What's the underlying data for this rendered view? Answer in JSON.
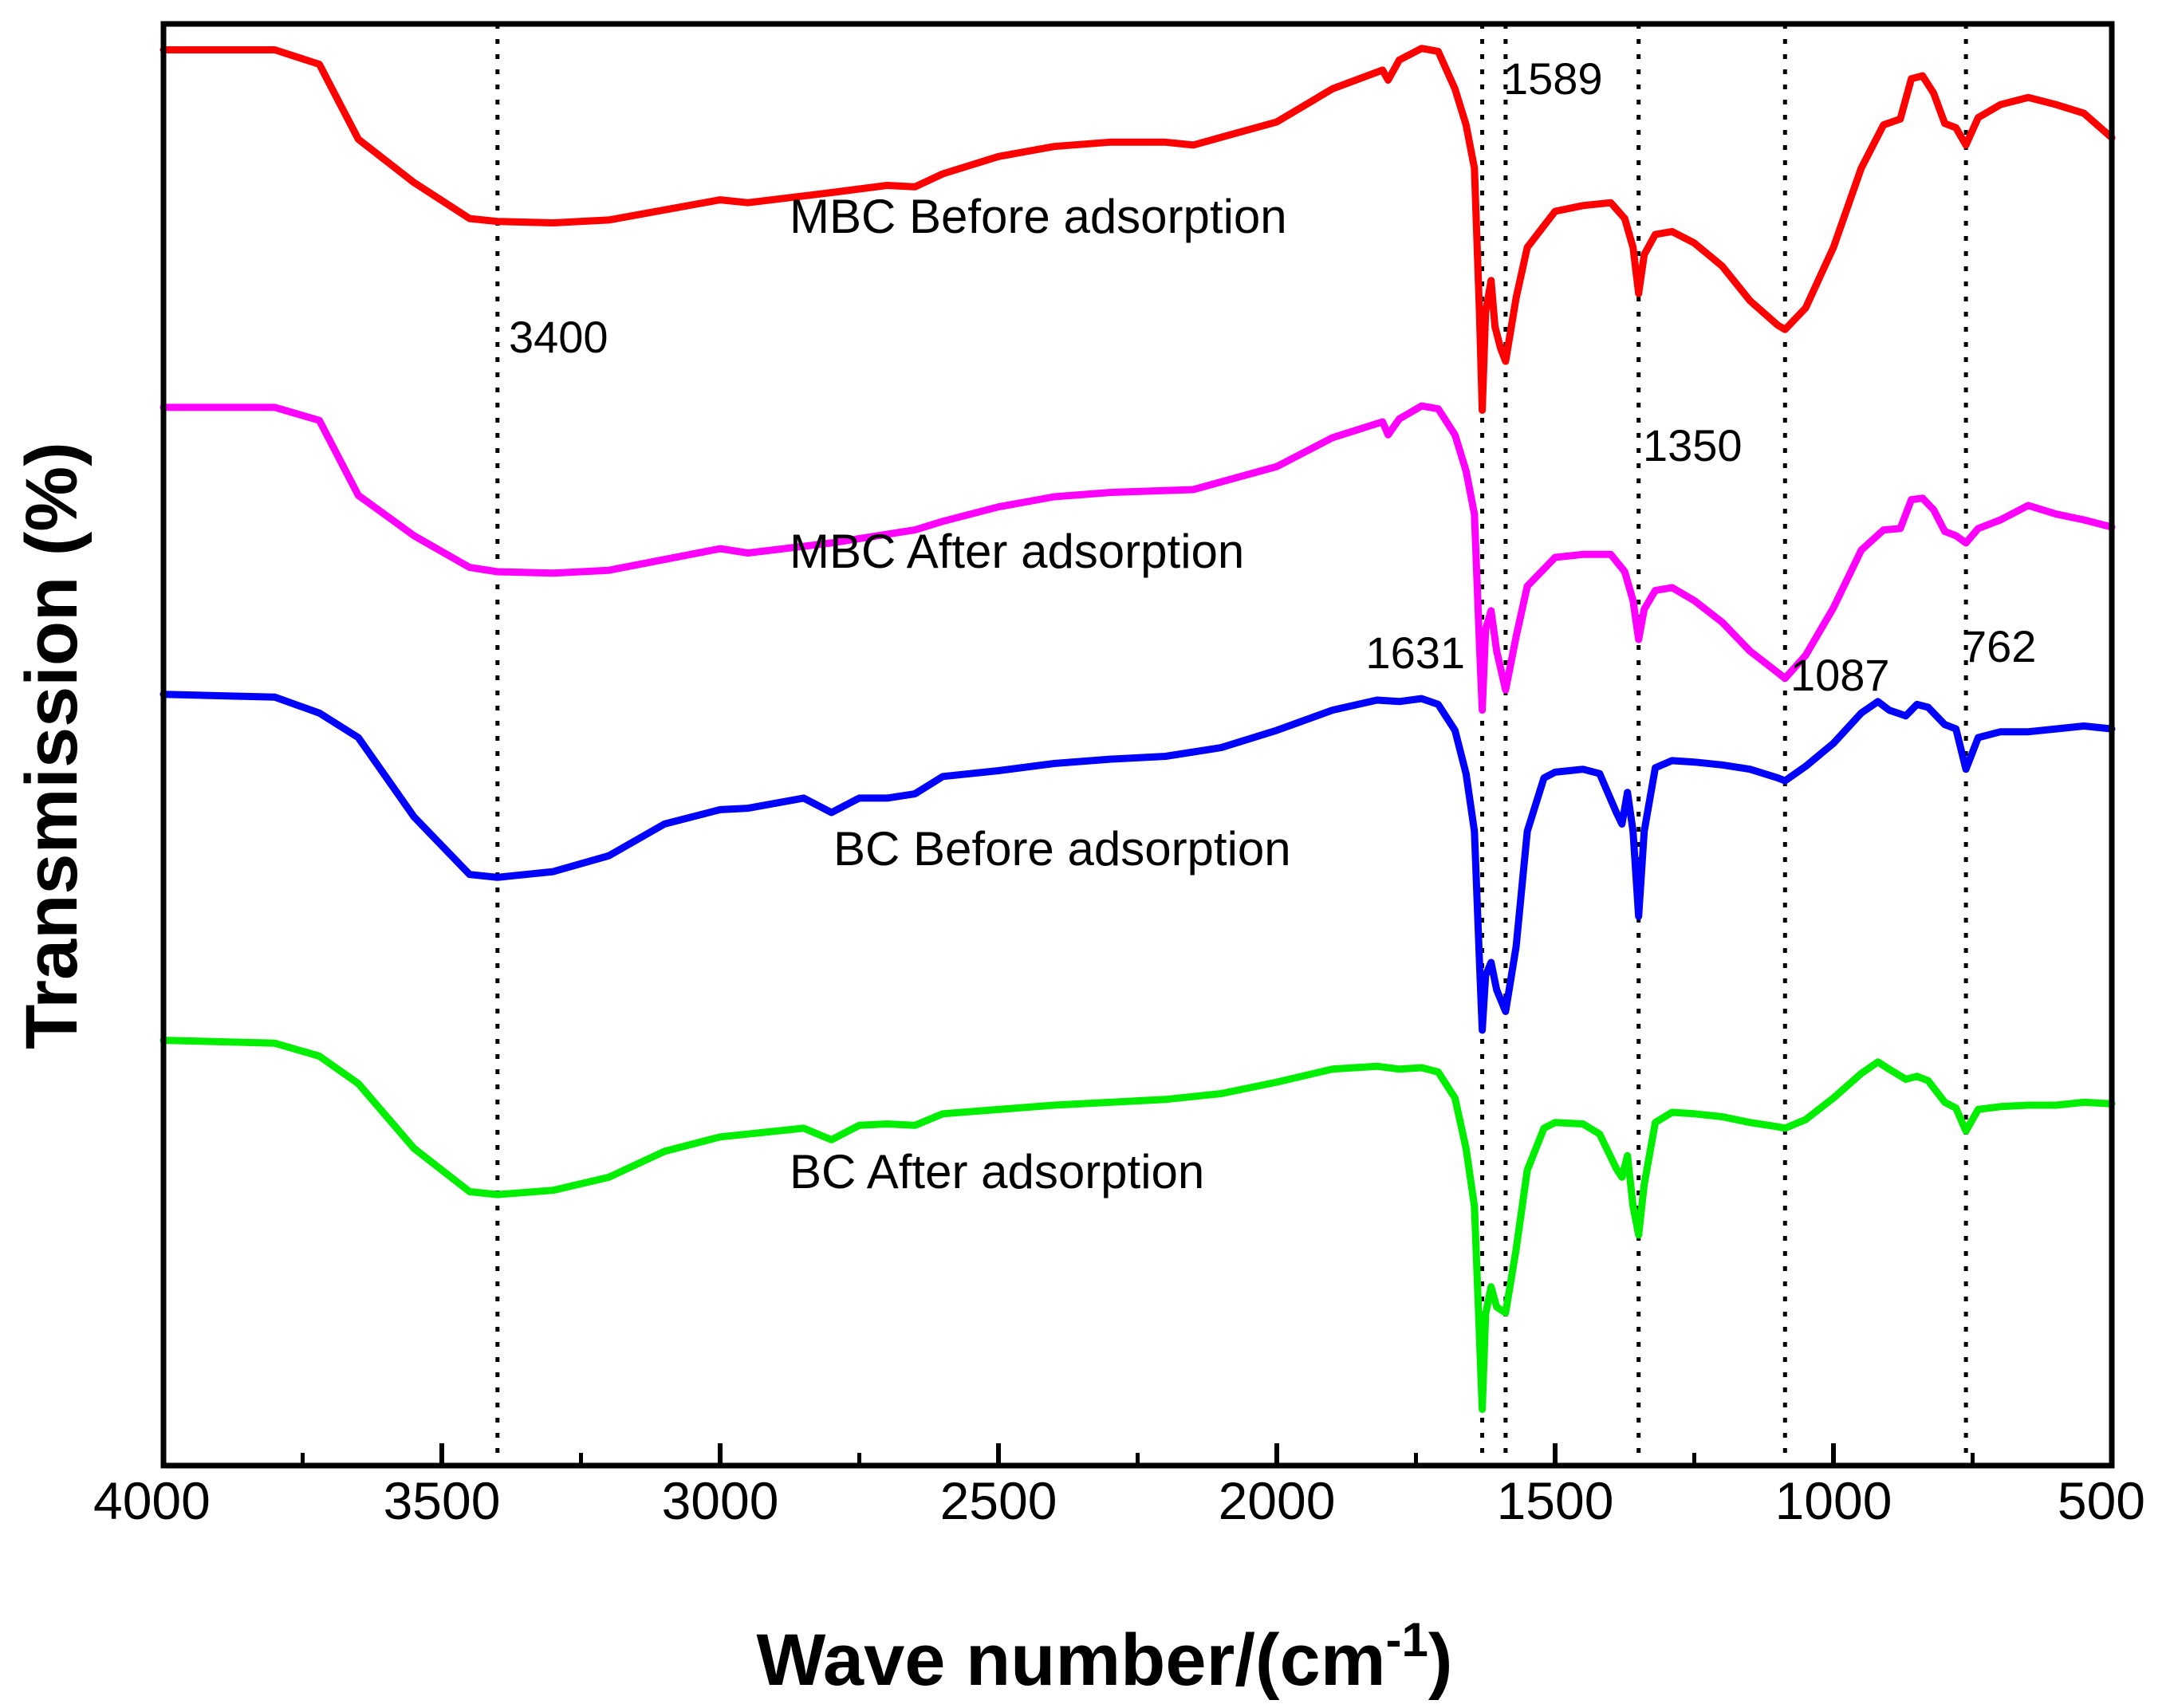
{
  "chart_data": {
    "type": "line",
    "title": "",
    "xlabel": "Wave number/(cm",
    "xlabel_sup": "-1",
    "xlabel_close": ")",
    "ylabel": "Transmission (%)",
    "xlim": [
      4000,
      500
    ],
    "x_reversed": true,
    "y_ticks_shown": false,
    "grid": false,
    "x_ticks": [
      4000,
      3500,
      3000,
      2500,
      2000,
      1500,
      1000,
      500
    ],
    "x_tick_labels": [
      "4000",
      "3500",
      "3000",
      "2500",
      "2000",
      "1500",
      "1000",
      "500"
    ],
    "reference_lines": [
      3400,
      1631,
      1589,
      1350,
      1087,
      762
    ],
    "peak_labels": [
      {
        "text": "3400",
        "x": 3400
      },
      {
        "text": "1589",
        "x": 1589
      },
      {
        "text": "1350",
        "x": 1350
      },
      {
        "text": "1631",
        "x": 1631
      },
      {
        "text": "1087",
        "x": 1087
      },
      {
        "text": "762",
        "x": 762
      }
    ],
    "y_units": "offset transmission (arb. units, 0 = bottom of plot, 100 = top of plot)",
    "series": [
      {
        "name": "MBC Before adsorption",
        "color": "#ff0000",
        "points": [
          [
            4000,
            98.2
          ],
          [
            3800,
            98.2
          ],
          [
            3720,
            97.2
          ],
          [
            3650,
            92
          ],
          [
            3550,
            89
          ],
          [
            3450,
            86.5
          ],
          [
            3400,
            86.3
          ],
          [
            3300,
            86.2
          ],
          [
            3200,
            86.4
          ],
          [
            3000,
            87.8
          ],
          [
            2950,
            87.6
          ],
          [
            2800,
            88.3
          ],
          [
            2700,
            88.8
          ],
          [
            2650,
            88.7
          ],
          [
            2600,
            89.6
          ],
          [
            2500,
            90.8
          ],
          [
            2400,
            91.5
          ],
          [
            2300,
            91.8
          ],
          [
            2200,
            91.8
          ],
          [
            2150,
            91.6
          ],
          [
            2000,
            93.2
          ],
          [
            1900,
            95.5
          ],
          [
            1810,
            96.8
          ],
          [
            1800,
            96.1
          ],
          [
            1780,
            97.5
          ],
          [
            1740,
            98.3
          ],
          [
            1710,
            98.1
          ],
          [
            1680,
            95.5
          ],
          [
            1660,
            93
          ],
          [
            1645,
            90
          ],
          [
            1636,
            80
          ],
          [
            1631,
            73.2
          ],
          [
            1625,
            80
          ],
          [
            1615,
            82.2
          ],
          [
            1608,
            79
          ],
          [
            1598,
            77.5
          ],
          [
            1589,
            76.6
          ],
          [
            1570,
            81
          ],
          [
            1550,
            84.5
          ],
          [
            1500,
            87
          ],
          [
            1450,
            87.4
          ],
          [
            1400,
            87.6
          ],
          [
            1375,
            86.5
          ],
          [
            1360,
            84.5
          ],
          [
            1350,
            81.3
          ],
          [
            1340,
            84
          ],
          [
            1320,
            85.4
          ],
          [
            1290,
            85.6
          ],
          [
            1250,
            84.8
          ],
          [
            1200,
            83.2
          ],
          [
            1150,
            80.8
          ],
          [
            1100,
            79.1
          ],
          [
            1087,
            78.8
          ],
          [
            1050,
            80.3
          ],
          [
            1000,
            84.5
          ],
          [
            950,
            90
          ],
          [
            910,
            93
          ],
          [
            880,
            93.4
          ],
          [
            860,
            96.2
          ],
          [
            840,
            96.4
          ],
          [
            820,
            95.2
          ],
          [
            800,
            93.1
          ],
          [
            780,
            92.8
          ],
          [
            762,
            91.6
          ],
          [
            740,
            93.5
          ],
          [
            700,
            94.4
          ],
          [
            650,
            94.9
          ],
          [
            600,
            94.4
          ],
          [
            550,
            93.8
          ],
          [
            500,
            92.1
          ]
        ]
      },
      {
        "name": "MBC After adsorption",
        "color": "#ff00ff",
        "points": [
          [
            4000,
            73.4
          ],
          [
            3800,
            73.4
          ],
          [
            3720,
            72.5
          ],
          [
            3650,
            67.3
          ],
          [
            3550,
            64.5
          ],
          [
            3450,
            62.3
          ],
          [
            3400,
            62
          ],
          [
            3300,
            61.9
          ],
          [
            3200,
            62.1
          ],
          [
            3000,
            63.6
          ],
          [
            2950,
            63.3
          ],
          [
            2800,
            64
          ],
          [
            2650,
            64.9
          ],
          [
            2600,
            65.5
          ],
          [
            2500,
            66.5
          ],
          [
            2400,
            67.2
          ],
          [
            2300,
            67.5
          ],
          [
            2150,
            67.7
          ],
          [
            2000,
            69.3
          ],
          [
            1900,
            71.3
          ],
          [
            1810,
            72.4
          ],
          [
            1800,
            71.5
          ],
          [
            1780,
            72.6
          ],
          [
            1740,
            73.5
          ],
          [
            1710,
            73.3
          ],
          [
            1680,
            71.5
          ],
          [
            1660,
            69
          ],
          [
            1645,
            66
          ],
          [
            1636,
            57
          ],
          [
            1631,
            52.4
          ],
          [
            1625,
            58
          ],
          [
            1615,
            59.3
          ],
          [
            1605,
            56.5
          ],
          [
            1589,
            53.8
          ],
          [
            1570,
            57.5
          ],
          [
            1550,
            61
          ],
          [
            1500,
            63
          ],
          [
            1450,
            63.2
          ],
          [
            1400,
            63.2
          ],
          [
            1375,
            62
          ],
          [
            1360,
            60
          ],
          [
            1350,
            57.3
          ],
          [
            1340,
            59.4
          ],
          [
            1320,
            60.7
          ],
          [
            1290,
            60.9
          ],
          [
            1250,
            60
          ],
          [
            1200,
            58.5
          ],
          [
            1150,
            56.5
          ],
          [
            1100,
            55
          ],
          [
            1087,
            54.6
          ],
          [
            1050,
            56.2
          ],
          [
            1000,
            59.5
          ],
          [
            950,
            63.5
          ],
          [
            910,
            64.9
          ],
          [
            880,
            65
          ],
          [
            860,
            67
          ],
          [
            840,
            67.1
          ],
          [
            820,
            66.3
          ],
          [
            800,
            64.8
          ],
          [
            780,
            64.5
          ],
          [
            762,
            64
          ],
          [
            740,
            65
          ],
          [
            700,
            65.6
          ],
          [
            650,
            66.6
          ],
          [
            600,
            66
          ],
          [
            550,
            65.6
          ],
          [
            500,
            65.1
          ]
        ]
      },
      {
        "name": "BC Before adsorption",
        "color": "#0000ff",
        "points": [
          [
            4000,
            53.5
          ],
          [
            3800,
            53.3
          ],
          [
            3720,
            52.2
          ],
          [
            3650,
            50.5
          ],
          [
            3550,
            45
          ],
          [
            3450,
            41
          ],
          [
            3400,
            40.8
          ],
          [
            3300,
            41.2
          ],
          [
            3200,
            42.3
          ],
          [
            3100,
            44.5
          ],
          [
            3000,
            45.5
          ],
          [
            2950,
            45.6
          ],
          [
            2850,
            46.3
          ],
          [
            2800,
            45.3
          ],
          [
            2750,
            46.3
          ],
          [
            2700,
            46.3
          ],
          [
            2650,
            46.6
          ],
          [
            2600,
            47.8
          ],
          [
            2500,
            48.2
          ],
          [
            2400,
            48.7
          ],
          [
            2300,
            49
          ],
          [
            2200,
            49.2
          ],
          [
            2100,
            49.8
          ],
          [
            2000,
            51
          ],
          [
            1900,
            52.4
          ],
          [
            1820,
            53.1
          ],
          [
            1780,
            53
          ],
          [
            1740,
            53.2
          ],
          [
            1710,
            52.8
          ],
          [
            1680,
            51
          ],
          [
            1660,
            48
          ],
          [
            1645,
            44
          ],
          [
            1636,
            35
          ],
          [
            1631,
            30.2
          ],
          [
            1625,
            34
          ],
          [
            1615,
            34.9
          ],
          [
            1605,
            33
          ],
          [
            1589,
            31.5
          ],
          [
            1570,
            36
          ],
          [
            1550,
            44
          ],
          [
            1520,
            47.7
          ],
          [
            1500,
            48.1
          ],
          [
            1450,
            48.3
          ],
          [
            1420,
            48
          ],
          [
            1390,
            45.3
          ],
          [
            1380,
            44.5
          ],
          [
            1370,
            46.7
          ],
          [
            1360,
            44
          ],
          [
            1350,
            38.1
          ],
          [
            1340,
            44
          ],
          [
            1320,
            48.4
          ],
          [
            1290,
            48.9
          ],
          [
            1250,
            48.8
          ],
          [
            1200,
            48.6
          ],
          [
            1150,
            48.3
          ],
          [
            1100,
            47.7
          ],
          [
            1087,
            47.5
          ],
          [
            1050,
            48.5
          ],
          [
            1000,
            50.1
          ],
          [
            950,
            52.2
          ],
          [
            920,
            53
          ],
          [
            900,
            52.4
          ],
          [
            870,
            52
          ],
          [
            850,
            52.8
          ],
          [
            830,
            52.6
          ],
          [
            800,
            51.4
          ],
          [
            780,
            51.1
          ],
          [
            762,
            48.3
          ],
          [
            740,
            50.5
          ],
          [
            700,
            50.9
          ],
          [
            650,
            50.9
          ],
          [
            600,
            51.1
          ],
          [
            550,
            51.3
          ],
          [
            500,
            51.1
          ]
        ]
      },
      {
        "name": "BC After adsorption",
        "color": "#00ee00",
        "points": [
          [
            4000,
            29.5
          ],
          [
            3800,
            29.3
          ],
          [
            3720,
            28.4
          ],
          [
            3650,
            26.5
          ],
          [
            3550,
            22
          ],
          [
            3450,
            19
          ],
          [
            3400,
            18.8
          ],
          [
            3300,
            19.1
          ],
          [
            3200,
            20
          ],
          [
            3100,
            21.8
          ],
          [
            3000,
            22.8
          ],
          [
            2950,
            23
          ],
          [
            2850,
            23.4
          ],
          [
            2800,
            22.6
          ],
          [
            2750,
            23.6
          ],
          [
            2700,
            23.7
          ],
          [
            2650,
            23.6
          ],
          [
            2600,
            24.4
          ],
          [
            2500,
            24.7
          ],
          [
            2400,
            25
          ],
          [
            2300,
            25.2
          ],
          [
            2200,
            25.4
          ],
          [
            2100,
            25.8
          ],
          [
            2000,
            26.6
          ],
          [
            1900,
            27.5
          ],
          [
            1820,
            27.7
          ],
          [
            1780,
            27.5
          ],
          [
            1740,
            27.6
          ],
          [
            1710,
            27.3
          ],
          [
            1680,
            25.5
          ],
          [
            1660,
            22
          ],
          [
            1645,
            18
          ],
          [
            1636,
            9
          ],
          [
            1631,
            3.9
          ],
          [
            1625,
            10.5
          ],
          [
            1615,
            12.4
          ],
          [
            1605,
            11
          ],
          [
            1589,
            10.6
          ],
          [
            1570,
            15
          ],
          [
            1550,
            20.5
          ],
          [
            1520,
            23.4
          ],
          [
            1500,
            23.8
          ],
          [
            1450,
            23.7
          ],
          [
            1420,
            23
          ],
          [
            1390,
            20.6
          ],
          [
            1380,
            20
          ],
          [
            1370,
            21.5
          ],
          [
            1360,
            18
          ],
          [
            1350,
            16
          ],
          [
            1340,
            19.5
          ],
          [
            1320,
            23.8
          ],
          [
            1290,
            24.5
          ],
          [
            1250,
            24.4
          ],
          [
            1200,
            24.2
          ],
          [
            1150,
            23.8
          ],
          [
            1100,
            23.5
          ],
          [
            1087,
            23.4
          ],
          [
            1050,
            24
          ],
          [
            1000,
            25.5
          ],
          [
            950,
            27.2
          ],
          [
            920,
            28
          ],
          [
            900,
            27.5
          ],
          [
            870,
            26.8
          ],
          [
            850,
            27
          ],
          [
            830,
            26.7
          ],
          [
            800,
            25.2
          ],
          [
            780,
            24.8
          ],
          [
            762,
            23.2
          ],
          [
            740,
            24.7
          ],
          [
            700,
            24.9
          ],
          [
            650,
            25
          ],
          [
            600,
            25
          ],
          [
            550,
            25.2
          ],
          [
            500,
            25.1
          ]
        ]
      }
    ]
  }
}
